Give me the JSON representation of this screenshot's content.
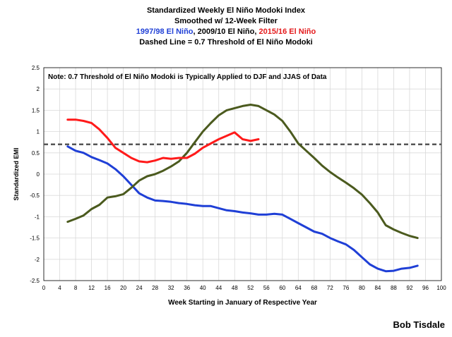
{
  "header": {
    "line1": "Standardized Weekly El Niño Modoki Index",
    "line2": "Smoothed w/ 12-Week Filter",
    "line3_a": "1997/98 El Niño",
    "line3_b": "2009/10 El Niño",
    "line3_c": "2015/16 El Niño",
    "line3_sep": ", ",
    "line4": "Dashed Line = 0.7 Threshold of El Niño Modoki"
  },
  "credit": "Bob Tisdale",
  "colors": {
    "series_1997": "#1f3fd6",
    "series_2009": "#4b5a1e",
    "series_2015": "#ff1a1a",
    "threshold": "#555555",
    "grid": "#d9d9d9"
  },
  "chart_data": {
    "type": "line",
    "title": "Standardized Weekly El Niño Modoki Index",
    "subtitle": "Smoothed w/ 12-Week Filter",
    "xlabel": "Week Starting in January of Respective Year",
    "ylabel": "Standardized EMI",
    "xlim": [
      0,
      100
    ],
    "ylim": [
      -2.5,
      2.5
    ],
    "xticks": [
      0,
      4,
      8,
      12,
      16,
      20,
      24,
      28,
      32,
      36,
      40,
      44,
      48,
      52,
      56,
      60,
      64,
      68,
      72,
      76,
      80,
      84,
      88,
      92,
      96,
      100
    ],
    "yticks": [
      -2.5,
      -2,
      -1.5,
      -1,
      -0.5,
      0,
      0.5,
      1,
      1.5,
      2,
      2.5
    ],
    "grid": true,
    "annotation": "Note: 0.7 Threshold of El Niño Modoki is Typically Applied to DJF and JJAS of Data",
    "threshold": 0.7,
    "series": [
      {
        "name": "1997/98 El Niño",
        "x": [
          6,
          8,
          10,
          12,
          14,
          16,
          18,
          20,
          22,
          24,
          26,
          28,
          30,
          32,
          34,
          36,
          38,
          40,
          42,
          44,
          46,
          48,
          50,
          52,
          54,
          56,
          58,
          60,
          62,
          64,
          66,
          68,
          70,
          72,
          74,
          76,
          78,
          80,
          82,
          84,
          86,
          88,
          90,
          92,
          94
        ],
        "y": [
          0.65,
          0.55,
          0.5,
          0.4,
          0.33,
          0.25,
          0.12,
          -0.05,
          -0.25,
          -0.45,
          -0.55,
          -0.62,
          -0.63,
          -0.65,
          -0.68,
          -0.7,
          -0.73,
          -0.75,
          -0.75,
          -0.8,
          -0.85,
          -0.87,
          -0.9,
          -0.92,
          -0.95,
          -0.95,
          -0.93,
          -0.95,
          -1.05,
          -1.15,
          -1.25,
          -1.35,
          -1.4,
          -1.5,
          -1.58,
          -1.65,
          -1.78,
          -1.95,
          -2.12,
          -2.22,
          -2.28,
          -2.27,
          -2.22,
          -2.2,
          -2.15
        ]
      },
      {
        "name": "2009/10 El Niño",
        "x": [
          6,
          8,
          10,
          12,
          14,
          16,
          18,
          20,
          22,
          24,
          26,
          28,
          30,
          32,
          34,
          36,
          38,
          40,
          42,
          44,
          46,
          48,
          50,
          52,
          54,
          56,
          58,
          60,
          62,
          64,
          66,
          68,
          70,
          72,
          74,
          76,
          78,
          80,
          82,
          84,
          86,
          88,
          90,
          92,
          94
        ],
        "y": [
          -1.12,
          -1.05,
          -0.97,
          -0.82,
          -0.72,
          -0.55,
          -0.52,
          -0.47,
          -0.32,
          -0.15,
          -0.05,
          0.0,
          0.08,
          0.18,
          0.3,
          0.5,
          0.75,
          1.0,
          1.2,
          1.38,
          1.5,
          1.55,
          1.6,
          1.63,
          1.6,
          1.5,
          1.4,
          1.25,
          1.0,
          0.72,
          0.55,
          0.38,
          0.2,
          0.05,
          -0.08,
          -0.2,
          -0.33,
          -0.48,
          -0.68,
          -0.9,
          -1.2,
          -1.3,
          -1.38,
          -1.45,
          -1.5
        ]
      },
      {
        "name": "2015/16 El Niño",
        "x": [
          6,
          8,
          10,
          12,
          14,
          16,
          18,
          20,
          22,
          24,
          26,
          28,
          30,
          32,
          34,
          36,
          38,
          40,
          42,
          44,
          46,
          48,
          50,
          52,
          54
        ],
        "y": [
          1.28,
          1.28,
          1.25,
          1.2,
          1.05,
          0.85,
          0.62,
          0.5,
          0.38,
          0.3,
          0.28,
          0.32,
          0.38,
          0.36,
          0.38,
          0.38,
          0.48,
          0.62,
          0.72,
          0.82,
          0.9,
          0.98,
          0.82,
          0.78,
          0.82
        ]
      }
    ]
  }
}
